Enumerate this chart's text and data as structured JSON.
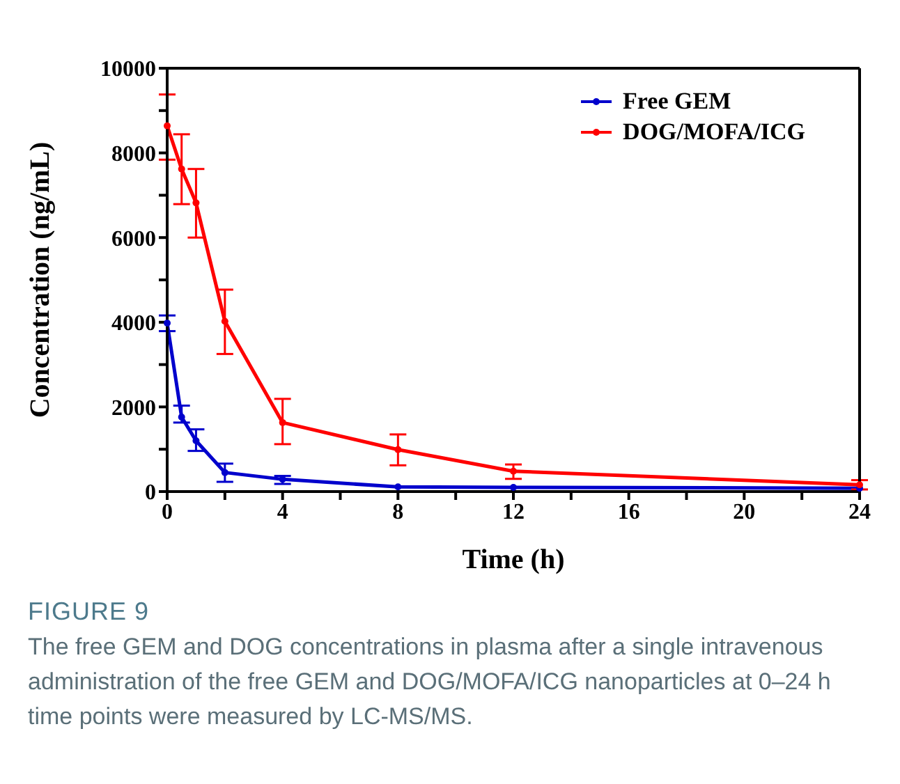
{
  "chart_data": {
    "type": "line",
    "xlabel": "Time (h)",
    "ylabel": "Concentration (ng/mL)",
    "x": [
      0,
      0.5,
      1,
      2,
      4,
      8,
      12,
      24
    ],
    "series": [
      {
        "name": "Free GEM",
        "color": "#0000cc",
        "values": [
          3980,
          1760,
          1200,
          450,
          290,
          110,
          100,
          80
        ],
        "errors": [
          [
            3790,
            4160
          ],
          [
            1630,
            2030
          ],
          [
            960,
            1470
          ],
          [
            230,
            660
          ],
          [
            180,
            370
          ],
          null,
          null,
          null
        ]
      },
      {
        "name": "DOG/MOFA/ICG",
        "color": "#ff0000",
        "values": [
          8640,
          7620,
          6820,
          4020,
          1630,
          990,
          480,
          160
        ],
        "errors": [
          [
            7840,
            9380
          ],
          [
            6790,
            8440
          ],
          [
            6000,
            7620
          ],
          [
            3250,
            4770
          ],
          [
            1120,
            2190
          ],
          [
            620,
            1350
          ],
          [
            300,
            640
          ],
          [
            50,
            270
          ]
        ]
      }
    ],
    "xlim": [
      0,
      24
    ],
    "xticks": [
      0,
      {
        "value": 2,
        "label": null
      },
      4,
      {
        "value": 6,
        "label": null
      },
      8,
      {
        "value": 10,
        "label": null
      },
      12,
      {
        "value": 14,
        "label": null
      },
      16,
      {
        "value": 18,
        "label": null
      },
      20,
      {
        "value": 22,
        "label": null
      },
      24
    ],
    "ylim": [
      0,
      10000
    ],
    "yticks": [
      0,
      {
        "value": 1000,
        "label": null
      },
      2000,
      {
        "value": 3000,
        "label": null
      },
      4000,
      {
        "value": 5000,
        "label": null
      },
      6000,
      {
        "value": 7000,
        "label": null
      },
      8000,
      {
        "value": 9000,
        "label": null
      },
      10000
    ],
    "grid": false,
    "legend": "top right",
    "marker": "circle",
    "line_style": "solid",
    "annotations": [
      "FIGURE 9",
      "The free GEM and DOG concentrations in plasma after a single intravenous administration of the free GEM and DOG/MOFA/ICG nanoparticles at 0–24 h time points were measured by LC-MS/MS."
    ]
  }
}
